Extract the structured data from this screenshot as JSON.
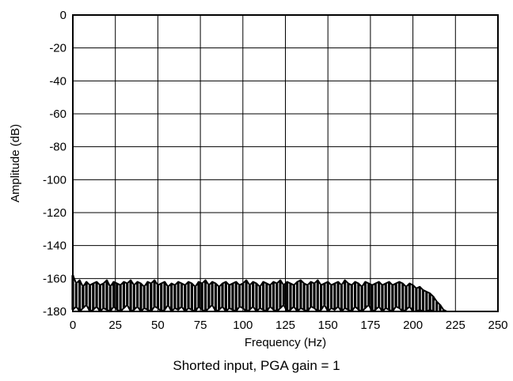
{
  "caption": "Shorted input, PGA gain = 1",
  "chart_data": {
    "type": "line",
    "title": "",
    "xlabel": "Frequency (Hz)",
    "ylabel": "Amplitude (dB)",
    "xlim": [
      0,
      250
    ],
    "ylim": [
      -180,
      0
    ],
    "xticks": [
      0,
      25,
      50,
      75,
      100,
      125,
      150,
      175,
      200,
      225,
      250
    ],
    "yticks": [
      0,
      -20,
      -40,
      -60,
      -80,
      -100,
      -120,
      -140,
      -160,
      -180
    ],
    "grid": true,
    "legend": "none",
    "series_color": "#000000",
    "series": [
      {
        "x": [
          0,
          2,
          4,
          6,
          8,
          10,
          12,
          14,
          16,
          18,
          20,
          22,
          24,
          26,
          28,
          30,
          32,
          34,
          36,
          38,
          40,
          42,
          44,
          46,
          48,
          50,
          52,
          54,
          56,
          58,
          60,
          62,
          64,
          66,
          68,
          70,
          72,
          74,
          76,
          78,
          80,
          82,
          84,
          86,
          88,
          90,
          92,
          94,
          96,
          98,
          100,
          102,
          104,
          106,
          108,
          110,
          112,
          114,
          116,
          118,
          120,
          122,
          124,
          126,
          128,
          130,
          132,
          134,
          136,
          138,
          140,
          142,
          144,
          146,
          148,
          150,
          152,
          154,
          156,
          158,
          160,
          162,
          164,
          166,
          168,
          170,
          172,
          174,
          176,
          178,
          180,
          182,
          184,
          186,
          188,
          190,
          192,
          194,
          196,
          198,
          200,
          202,
          204,
          206,
          208,
          210,
          212,
          214,
          216,
          218,
          220,
          222,
          224,
          226,
          228,
          230,
          232,
          234,
          236,
          238,
          240,
          242,
          244,
          246,
          248,
          250
        ],
        "y": [
          -158,
          -163,
          -161,
          -165,
          -162,
          -164,
          -163,
          -162,
          -164,
          -163,
          -161,
          -165,
          -162,
          -163,
          -164,
          -162,
          -163,
          -161,
          -164,
          -162,
          -163,
          -165,
          -162,
          -163,
          -161,
          -164,
          -163,
          -162,
          -165,
          -163,
          -164,
          -162,
          -163,
          -164,
          -162,
          -163,
          -165,
          -162,
          -163,
          -161,
          -164,
          -162,
          -163,
          -165,
          -163,
          -162,
          -164,
          -163,
          -162,
          -164,
          -163,
          -161,
          -164,
          -162,
          -163,
          -165,
          -162,
          -163,
          -164,
          -162,
          -163,
          -161,
          -164,
          -162,
          -163,
          -164,
          -162,
          -161,
          -163,
          -164,
          -162,
          -163,
          -161,
          -164,
          -163,
          -162,
          -164,
          -163,
          -162,
          -164,
          -161,
          -163,
          -164,
          -162,
          -163,
          -165,
          -162,
          -163,
          -164,
          -163,
          -162,
          -164,
          -163,
          -162,
          -164,
          -163,
          -162,
          -163,
          -165,
          -163,
          -164,
          -166,
          -165,
          -167,
          -168,
          -169,
          -171,
          -174,
          -176,
          -179,
          -180,
          -180,
          -180,
          -180,
          -180,
          -180,
          -180,
          -180,
          -180,
          -180,
          -180,
          -180,
          -180,
          -180,
          -180,
          -180
        ]
      },
      {
        "x": [
          0,
          2,
          4,
          6,
          8,
          10,
          12,
          14,
          16,
          18,
          20,
          22,
          24,
          26,
          28,
          30,
          32,
          34,
          36,
          38,
          40,
          42,
          44,
          46,
          48,
          50,
          52,
          54,
          56,
          58,
          60,
          62,
          64,
          66,
          68,
          70,
          72,
          74,
          76,
          78,
          80,
          82,
          84,
          86,
          88,
          90,
          92,
          94,
          96,
          98,
          100,
          102,
          104,
          106,
          108,
          110,
          112,
          114,
          116,
          118,
          120,
          122,
          124,
          126,
          128,
          130,
          132,
          134,
          136,
          138,
          140,
          142,
          144,
          146,
          148,
          150,
          152,
          154,
          156,
          158,
          160,
          162,
          164,
          166,
          168,
          170,
          172,
          174,
          176,
          178,
          180,
          182,
          184,
          186,
          188,
          190,
          192,
          194,
          196,
          198,
          200,
          202,
          204,
          206,
          208,
          210,
          212,
          214,
          216,
          218,
          220
        ],
        "y": [
          -179,
          -177,
          -180,
          -178,
          -176,
          -180,
          -179,
          -177,
          -180,
          -178,
          -179,
          -180,
          -177,
          -179,
          -180,
          -178,
          -176,
          -180,
          -179,
          -177,
          -180,
          -178,
          -179,
          -180,
          -177,
          -178,
          -180,
          -179,
          -176,
          -180,
          -178,
          -179,
          -177,
          -180,
          -178,
          -179,
          -180,
          -177,
          -179,
          -180,
          -178,
          -176,
          -180,
          -179,
          -177,
          -180,
          -178,
          -179,
          -180,
          -177,
          -178,
          -180,
          -179,
          -177,
          -180,
          -178,
          -179,
          -180,
          -177,
          -179,
          -180,
          -178,
          -176,
          -180,
          -179,
          -177,
          -180,
          -178,
          -179,
          -180,
          -177,
          -178,
          -180,
          -179,
          -176,
          -180,
          -178,
          -179,
          -177,
          -180,
          -178,
          -179,
          -180,
          -177,
          -179,
          -180,
          -178,
          -176,
          -180,
          -179,
          -177,
          -180,
          -178,
          -179,
          -180,
          -177,
          -178,
          -180,
          -179,
          -177,
          -180,
          -180,
          -179,
          -180,
          -180,
          -179,
          -180,
          -180,
          -180,
          -180,
          -180
        ]
      }
    ]
  }
}
